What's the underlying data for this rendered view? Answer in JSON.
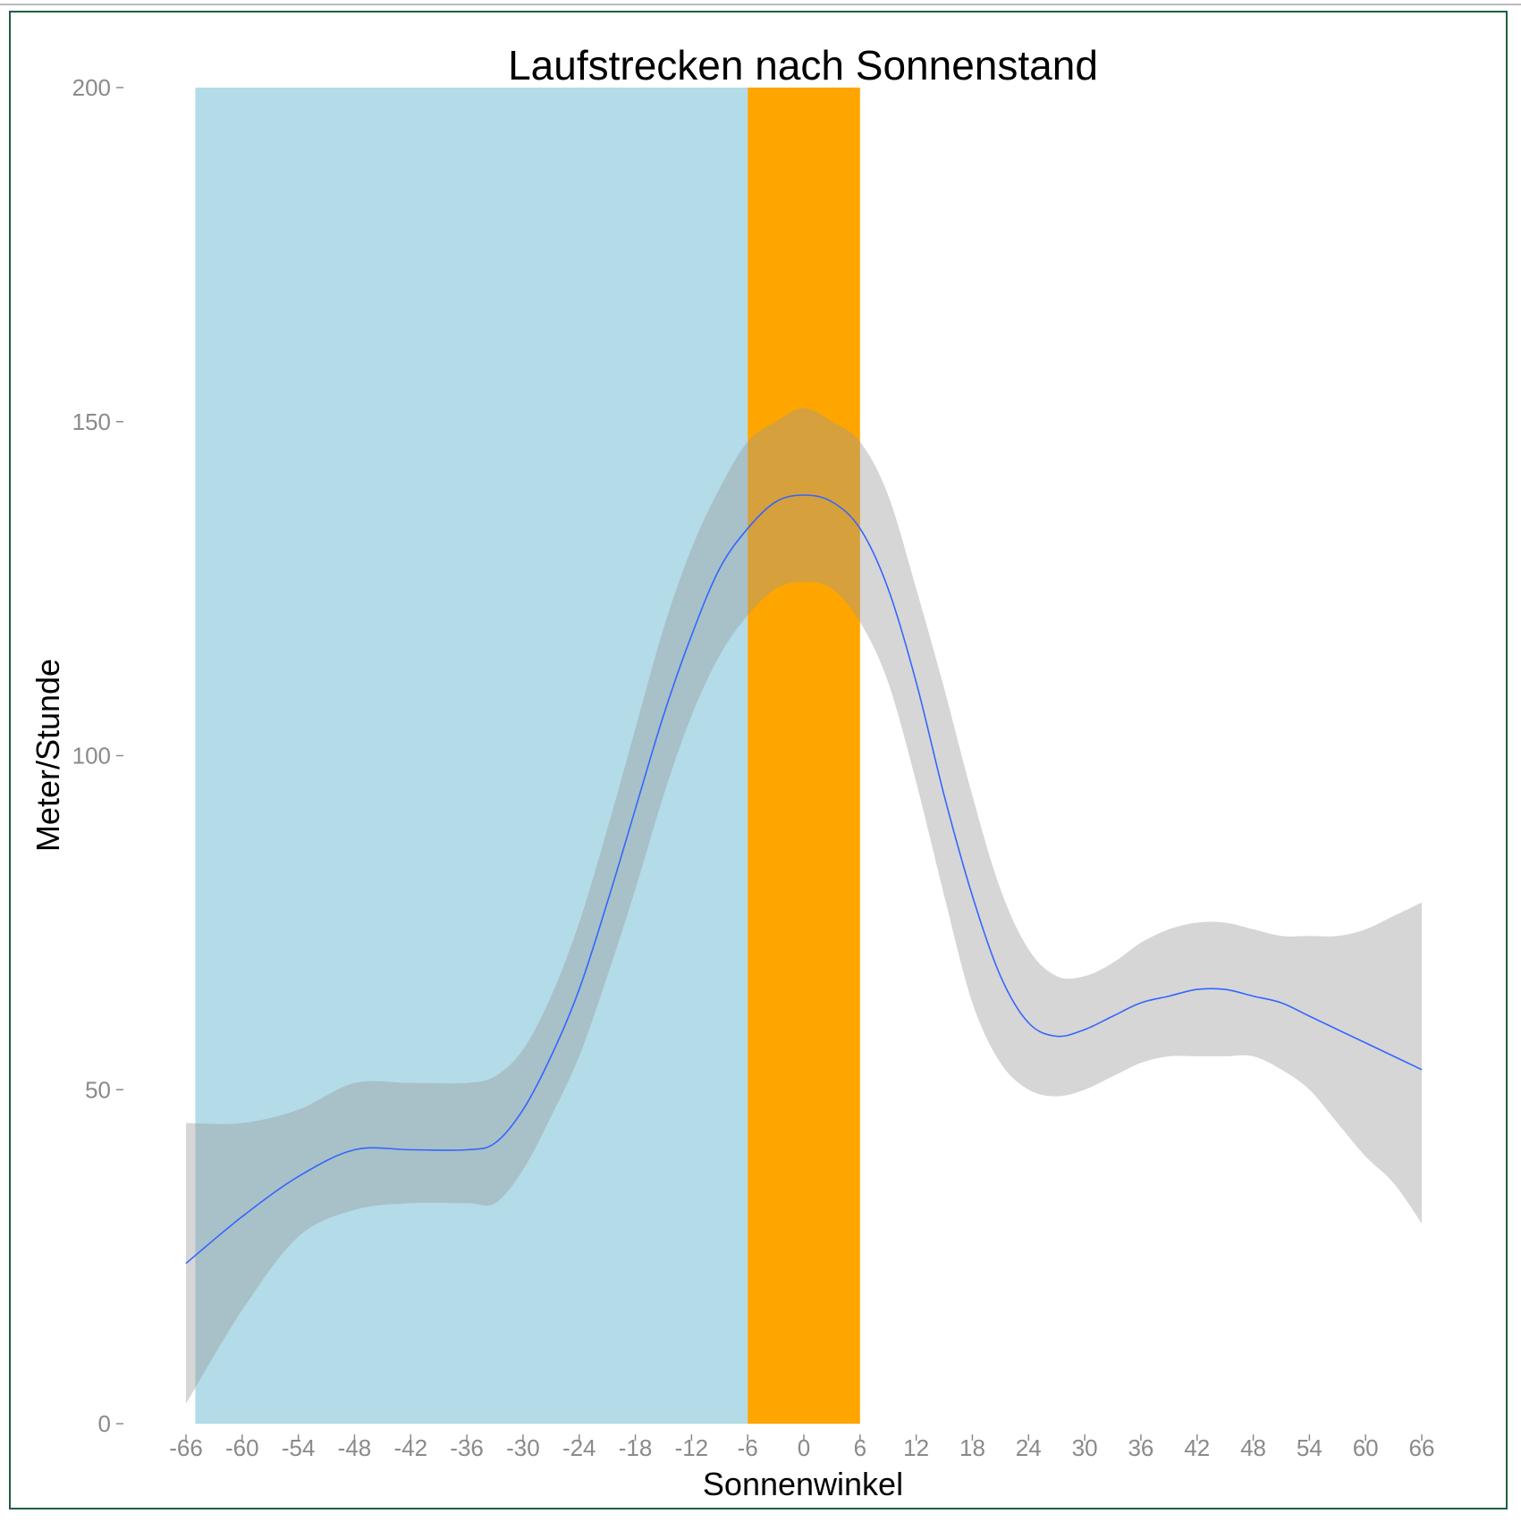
{
  "chart_data": {
    "type": "line",
    "title": "Laufstrecken nach Sonnenstand",
    "xlabel": "Sonnenwinkel",
    "ylabel": "Meter/Stunde",
    "xlim": [
      -66,
      66
    ],
    "ylim": [
      0,
      200
    ],
    "x_ticks": [
      -66,
      -60,
      -54,
      -48,
      -42,
      -36,
      -30,
      -24,
      -18,
      -12,
      -6,
      0,
      6,
      12,
      18,
      24,
      30,
      36,
      42,
      48,
      54,
      60,
      66
    ],
    "y_ticks": [
      0,
      50,
      100,
      150,
      200
    ],
    "grid": false,
    "bands": [
      {
        "from": -65,
        "to": -6,
        "color": "#add8e6",
        "opacity": 0.92
      },
      {
        "from": -6,
        "to": 6,
        "color": "#ffa500",
        "opacity": 1
      }
    ],
    "series": [
      {
        "x": [
          -66,
          -60,
          -54,
          -48,
          -42,
          -36,
          -33,
          -30,
          -27,
          -24,
          -21,
          -18,
          -15,
          -12,
          -9,
          -6,
          -3,
          0,
          3,
          6,
          9,
          12,
          15,
          18,
          21,
          24,
          27,
          30,
          33,
          36,
          39,
          42,
          45,
          48,
          51,
          54,
          57,
          60,
          63,
          66
        ],
        "y": [
          24,
          31,
          37,
          41,
          41,
          41,
          42,
          47,
          55,
          65,
          78,
          92,
          106,
          118,
          128,
          134,
          138,
          139,
          138,
          134,
          125,
          111,
          94,
          79,
          67,
          60,
          58,
          59,
          61,
          63,
          64,
          65,
          65,
          64,
          63,
          61,
          59,
          57,
          55,
          53
        ],
        "ci_low": [
          3,
          17,
          28,
          32,
          33,
          33,
          33,
          38,
          46,
          55,
          67,
          80,
          94,
          106,
          115,
          121,
          125,
          126,
          125,
          120,
          111,
          96,
          79,
          63,
          54,
          50,
          49,
          50,
          52,
          54,
          55,
          55,
          55,
          55,
          53,
          50,
          45,
          40,
          36,
          30
        ],
        "ci_high": [
          45,
          45,
          47,
          51,
          51,
          51,
          52,
          56,
          64,
          75,
          89,
          104,
          119,
          131,
          140,
          147,
          150,
          152,
          150,
          147,
          139,
          125,
          110,
          94,
          80,
          71,
          67,
          67,
          69,
          72,
          74,
          75,
          75,
          74,
          73,
          73,
          73,
          74,
          76,
          78
        ],
        "color": "#3366ff",
        "ci_color": "#999999"
      }
    ]
  }
}
